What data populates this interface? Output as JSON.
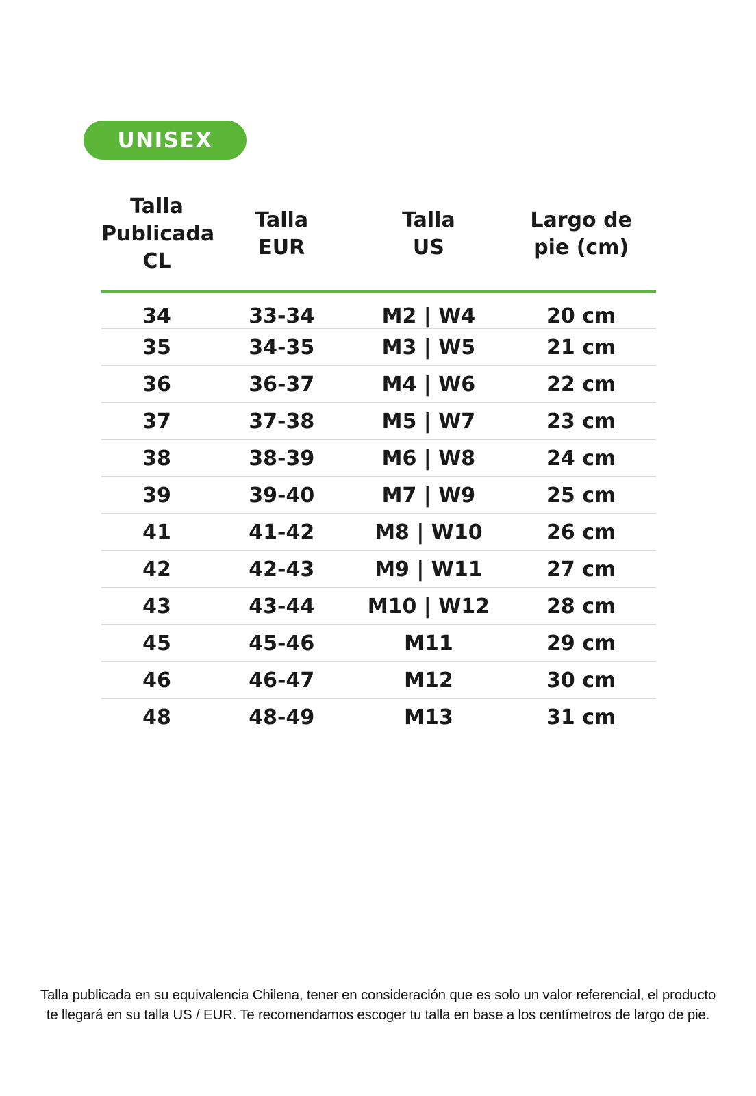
{
  "page": {
    "background": "#ffffff",
    "accent_green": "#5cb637",
    "text_color": "#1a1a1a",
    "divider_gray": "#d9d9d9"
  },
  "badge": {
    "label": "UNISEX"
  },
  "table": {
    "headers": [
      {
        "label": "Talla\nPublicada\nCL"
      },
      {
        "label": "Talla\nEUR"
      },
      {
        "label": "Talla\nUS"
      },
      {
        "label": "Largo de\npie (cm)"
      }
    ],
    "rows": [
      {
        "cl": "34",
        "eur": "33-34",
        "us": "M2 | W4",
        "cm": "20 cm"
      },
      {
        "cl": "35",
        "eur": "34-35",
        "us": "M3 | W5",
        "cm": "21 cm"
      },
      {
        "cl": "36",
        "eur": "36-37",
        "us": "M4 | W6",
        "cm": "22 cm"
      },
      {
        "cl": "37",
        "eur": "37-38",
        "us": "M5 | W7",
        "cm": "23 cm"
      },
      {
        "cl": "38",
        "eur": "38-39",
        "us": "M6 | W8",
        "cm": "24 cm"
      },
      {
        "cl": "39",
        "eur": "39-40",
        "us": "M7 | W9",
        "cm": "25 cm"
      },
      {
        "cl": "41",
        "eur": "41-42",
        "us": "M8 | W10",
        "cm": "26 cm"
      },
      {
        "cl": "42",
        "eur": "42-43",
        "us": "M9 | W11",
        "cm": "27 cm"
      },
      {
        "cl": "43",
        "eur": "43-44",
        "us": "M10 | W12",
        "cm": "28 cm"
      },
      {
        "cl": "45",
        "eur": "45-46",
        "us": "M11",
        "cm": "29 cm"
      },
      {
        "cl": "46",
        "eur": "46-47",
        "us": "M12",
        "cm": "30 cm"
      },
      {
        "cl": "48",
        "eur": "48-49",
        "us": "M13",
        "cm": "31 cm"
      }
    ]
  },
  "footer": {
    "note_line1": "Talla publicada en su equivalencia Chilena, tener en consideración que es solo un valor referencial, el producto",
    "note_line2": "te llegará en su talla US / EUR. Te recomendamos escoger tu talla en base a los centímetros de largo de pie."
  }
}
